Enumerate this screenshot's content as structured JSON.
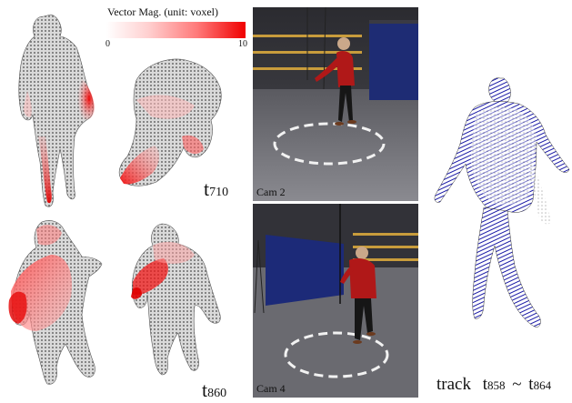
{
  "legend": {
    "title": "Vector Mag.  (unit: voxel)",
    "min_label": "0",
    "max_label": "10",
    "color_low": "#ffffff",
    "color_high": "#f00000"
  },
  "labels": {
    "t710": {
      "base": "t",
      "sub": "710"
    },
    "t860": {
      "base": "t",
      "sub": "860"
    },
    "cam2": "Cam 2",
    "cam4": "Cam 4",
    "track": {
      "prefix": "track",
      "start_base": "t",
      "start_sub": "858",
      "sep": "~",
      "end_base": "t",
      "end_sub": "864"
    }
  },
  "colors": {
    "voxel_gray": "#8a8a8a",
    "flow_red": "#e8101a",
    "track_blue": "#1a1aa6",
    "room_floor": "#6e6e72",
    "room_wall": "#4a4a4f",
    "shirt_red": "#b01818",
    "curtain_blue": "#1c2a78"
  }
}
